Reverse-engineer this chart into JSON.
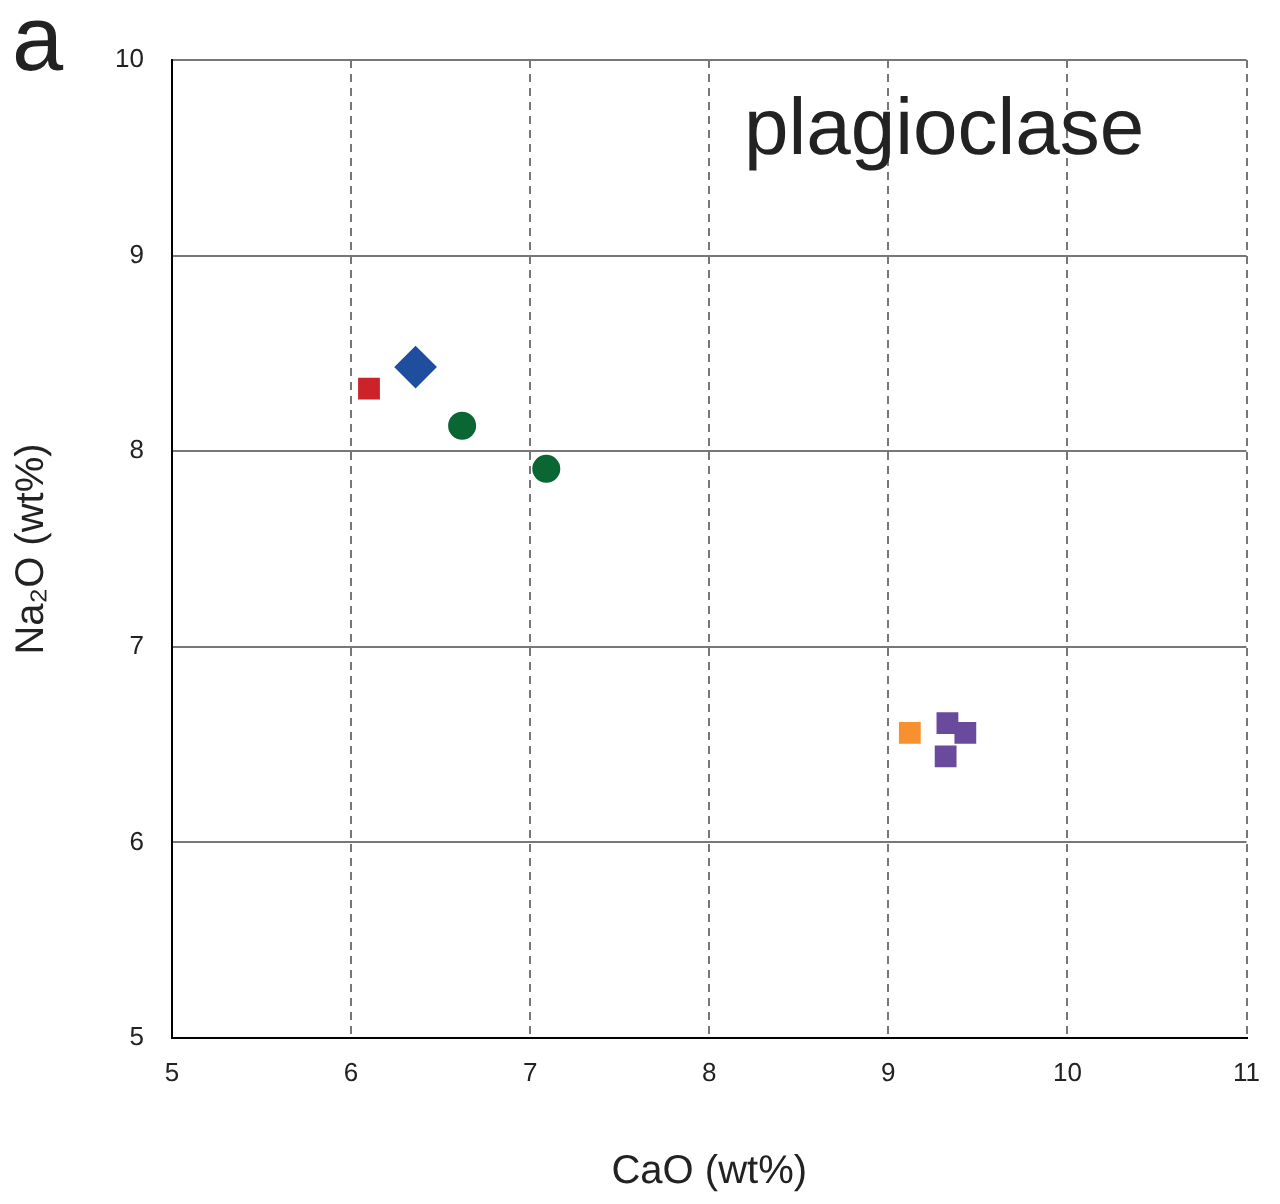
{
  "chart_data": {
    "type": "scatter",
    "xlabel": "CaO (wt%)",
    "ylabel": "Na₂O (wt%)",
    "annotations": [
      "a",
      "plagioclase"
    ],
    "xlim": [
      5,
      11
    ],
    "xticks": [
      5,
      6,
      7,
      8,
      9,
      10,
      11
    ],
    "ylim": [
      5,
      10
    ],
    "yticks": [
      5,
      6,
      7,
      8,
      9,
      10
    ],
    "grid": true,
    "legend": false,
    "series": [
      {
        "color": "#cc2229",
        "marker": "square",
        "x": [
          6.1
        ],
        "values": [
          8.32
        ]
      },
      {
        "color": "#1f4e9e",
        "marker": "diamond",
        "x": [
          6.36
        ],
        "values": [
          8.43
        ]
      },
      {
        "color": "#0a6633",
        "marker": "circle",
        "x": [
          6.62,
          7.09
        ],
        "values": [
          8.13,
          7.91
        ]
      },
      {
        "color": "#f7902f",
        "marker": "square",
        "x": [
          9.12
        ],
        "values": [
          6.56
        ]
      },
      {
        "color": "#6a4a9c",
        "marker": "square",
        "x": [
          9.33,
          9.43,
          9.32
        ],
        "values": [
          6.61,
          6.56,
          6.44
        ]
      }
    ]
  }
}
